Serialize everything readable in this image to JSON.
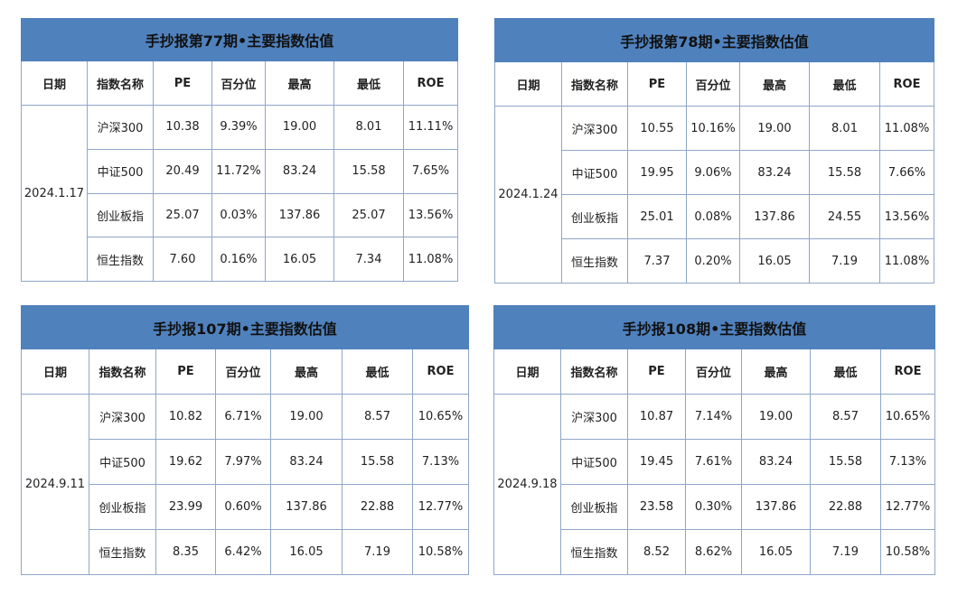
{
  "colors": {
    "title_bg": "#4f81bd",
    "border": "#8fa6c9",
    "text": "#222222"
  },
  "headers": [
    "日期",
    "指数名称",
    "PE",
    "百分位",
    "最高",
    "最低",
    "ROE"
  ],
  "tables": [
    {
      "title": "手抄报第77期•主要指数估值",
      "date": "2024.1.17",
      "rows": [
        [
          "沪深300",
          "10.38",
          "9.39%",
          "19.00",
          "8.01",
          "11.11%"
        ],
        [
          "中证500",
          "20.49",
          "11.72%",
          "83.24",
          "15.58",
          "7.65%"
        ],
        [
          "创业板指",
          "25.07",
          "0.03%",
          "137.86",
          "25.07",
          "13.56%"
        ],
        [
          "恒生指数",
          "7.60",
          "0.16%",
          "16.05",
          "7.34",
          "11.08%"
        ]
      ]
    },
    {
      "title": "手抄报第78期•主要指数估值",
      "date": "2024.1.24",
      "rows": [
        [
          "沪深300",
          "10.55",
          "10.16%",
          "19.00",
          "8.01",
          "11.08%"
        ],
        [
          "中证500",
          "19.95",
          "9.06%",
          "83.24",
          "15.58",
          "7.66%"
        ],
        [
          "创业板指",
          "25.01",
          "0.08%",
          "137.86",
          "24.55",
          "13.56%"
        ],
        [
          "恒生指数",
          "7.37",
          "0.20%",
          "16.05",
          "7.19",
          "11.08%"
        ]
      ]
    },
    {
      "title": "手抄报107期•主要指数估值",
      "date": "2024.9.11",
      "rows": [
        [
          "沪深300",
          "10.82",
          "6.71%",
          "19.00",
          "8.57",
          "10.65%"
        ],
        [
          "中证500",
          "19.62",
          "7.97%",
          "83.24",
          "15.58",
          "7.13%"
        ],
        [
          "创业板指",
          "23.99",
          "0.60%",
          "137.86",
          "22.88",
          "12.77%"
        ],
        [
          "恒生指数",
          "8.35",
          "6.42%",
          "16.05",
          "7.19",
          "10.58%"
        ]
      ]
    },
    {
      "title": "手抄报108期•主要指数估值",
      "date": "2024.9.18",
      "rows": [
        [
          "沪深300",
          "10.87",
          "7.14%",
          "19.00",
          "8.57",
          "10.65%"
        ],
        [
          "中证500",
          "19.45",
          "7.61%",
          "83.24",
          "15.58",
          "7.13%"
        ],
        [
          "创业板指",
          "23.58",
          "0.30%",
          "137.86",
          "22.88",
          "12.77%"
        ],
        [
          "恒生指数",
          "8.52",
          "8.62%",
          "16.05",
          "7.19",
          "10.58%"
        ]
      ]
    }
  ]
}
